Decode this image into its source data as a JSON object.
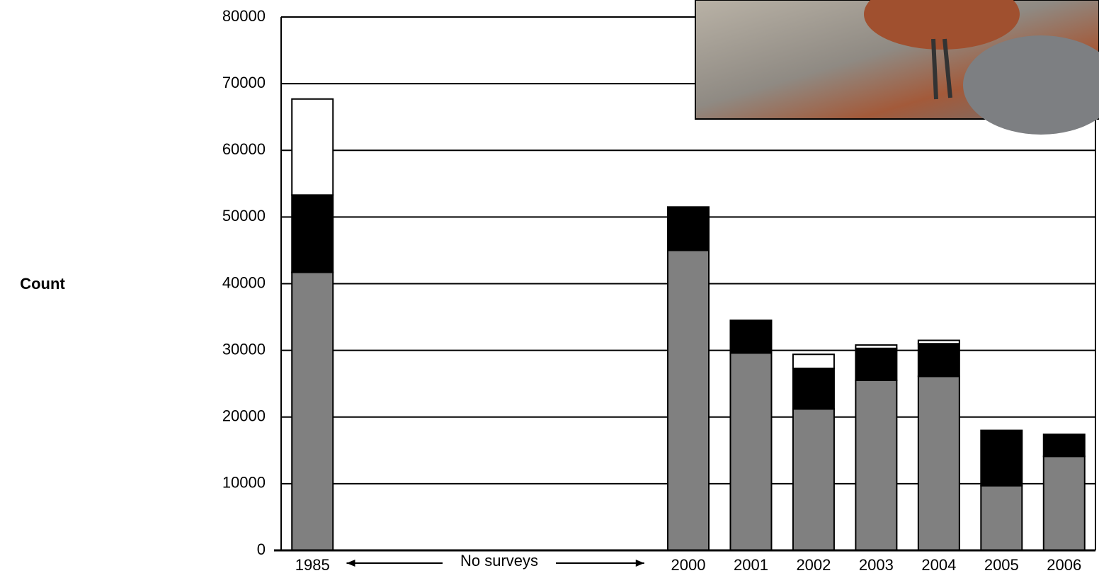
{
  "chart_data": {
    "type": "bar",
    "stacked": true,
    "y_label": "Count",
    "annotation": "No surveys",
    "categories": [
      "1985",
      null,
      null,
      null,
      null,
      null,
      "2000",
      "2001",
      "2002",
      "2003",
      "2004",
      "2005",
      "2006"
    ],
    "series": [
      {
        "color": "#808080",
        "values": [
          41700,
          null,
          null,
          null,
          null,
          null,
          45000,
          29600,
          21200,
          25500,
          26100,
          9700,
          14100
        ]
      },
      {
        "color": "#000000",
        "values": [
          11600,
          null,
          null,
          null,
          null,
          null,
          6500,
          4900,
          6100,
          4800,
          4900,
          8300,
          3300
        ]
      },
      {
        "color": "#ffffff",
        "values": [
          14400,
          null,
          null,
          null,
          null,
          null,
          0,
          0,
          2100,
          500,
          500,
          0,
          0
        ]
      }
    ],
    "ylim": [
      0,
      80000
    ],
    "yticks": [
      0,
      10000,
      20000,
      30000,
      40000,
      50000,
      60000,
      70000,
      80000
    ],
    "grid": true
  }
}
